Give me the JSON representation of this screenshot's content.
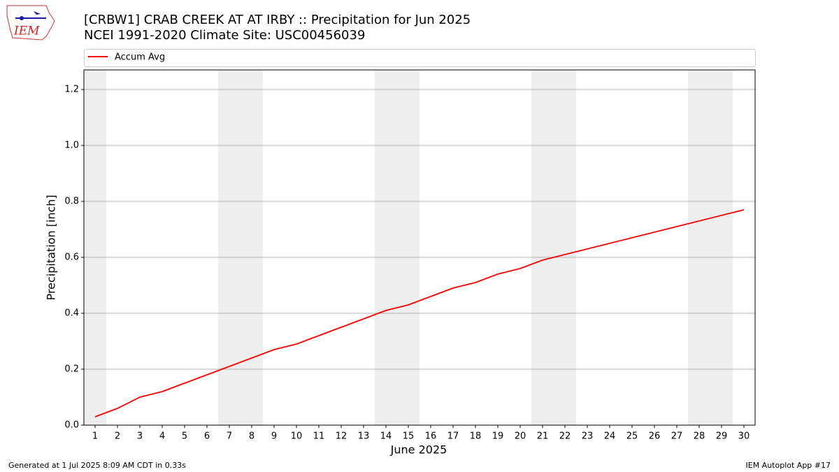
{
  "chart_data": {
    "type": "line",
    "title": "[CRBW1] CRAB CREEK  AT AT IRBY :: Precipitation for Jun 2025",
    "subtitle": "NCEI 1991-2020 Climate Site: USC00456039",
    "x_label": "June 2025",
    "y_label": "Precipitation [inch]",
    "x": [
      1,
      2,
      3,
      4,
      5,
      6,
      7,
      8,
      9,
      10,
      11,
      12,
      13,
      14,
      15,
      16,
      17,
      18,
      19,
      20,
      21,
      22,
      23,
      24,
      25,
      26,
      27,
      28,
      29,
      30
    ],
    "series": [
      {
        "name": "Accum Avg",
        "color": "#ff0000",
        "values": [
          0.03,
          0.06,
          0.1,
          0.12,
          0.15,
          0.18,
          0.21,
          0.24,
          0.27,
          0.29,
          0.32,
          0.35,
          0.38,
          0.41,
          0.43,
          0.46,
          0.49,
          0.51,
          0.54,
          0.56,
          0.59,
          0.61,
          0.63,
          0.65,
          0.67,
          0.69,
          0.71,
          0.73,
          0.75,
          0.77
        ]
      }
    ],
    "weekend_bands": [
      [
        0.5,
        1.5
      ],
      [
        6.5,
        8.5
      ],
      [
        13.5,
        15.5
      ],
      [
        20.5,
        22.5
      ],
      [
        27.5,
        29.5
      ]
    ],
    "xlim": [
      0.5,
      30.5
    ],
    "xticks": [
      1,
      2,
      3,
      4,
      5,
      6,
      7,
      8,
      9,
      10,
      11,
      12,
      13,
      14,
      15,
      16,
      17,
      18,
      19,
      20,
      21,
      22,
      23,
      24,
      25,
      26,
      27,
      28,
      29,
      30
    ],
    "ylim": [
      0,
      1.27
    ],
    "yticks": [
      {
        "value": 0,
        "label": "0.0"
      },
      0.2,
      0.4,
      0.6,
      0.8,
      {
        "value": 1,
        "label": "1.0"
      },
      1.2
    ],
    "grid": true,
    "legend": "top",
    "footer_left": "Generated at 1 Jul 2025 8:09 AM CDT in 0.33s",
    "footer_right": "IEM Autoplot App #17",
    "logo_text": "IEM"
  }
}
